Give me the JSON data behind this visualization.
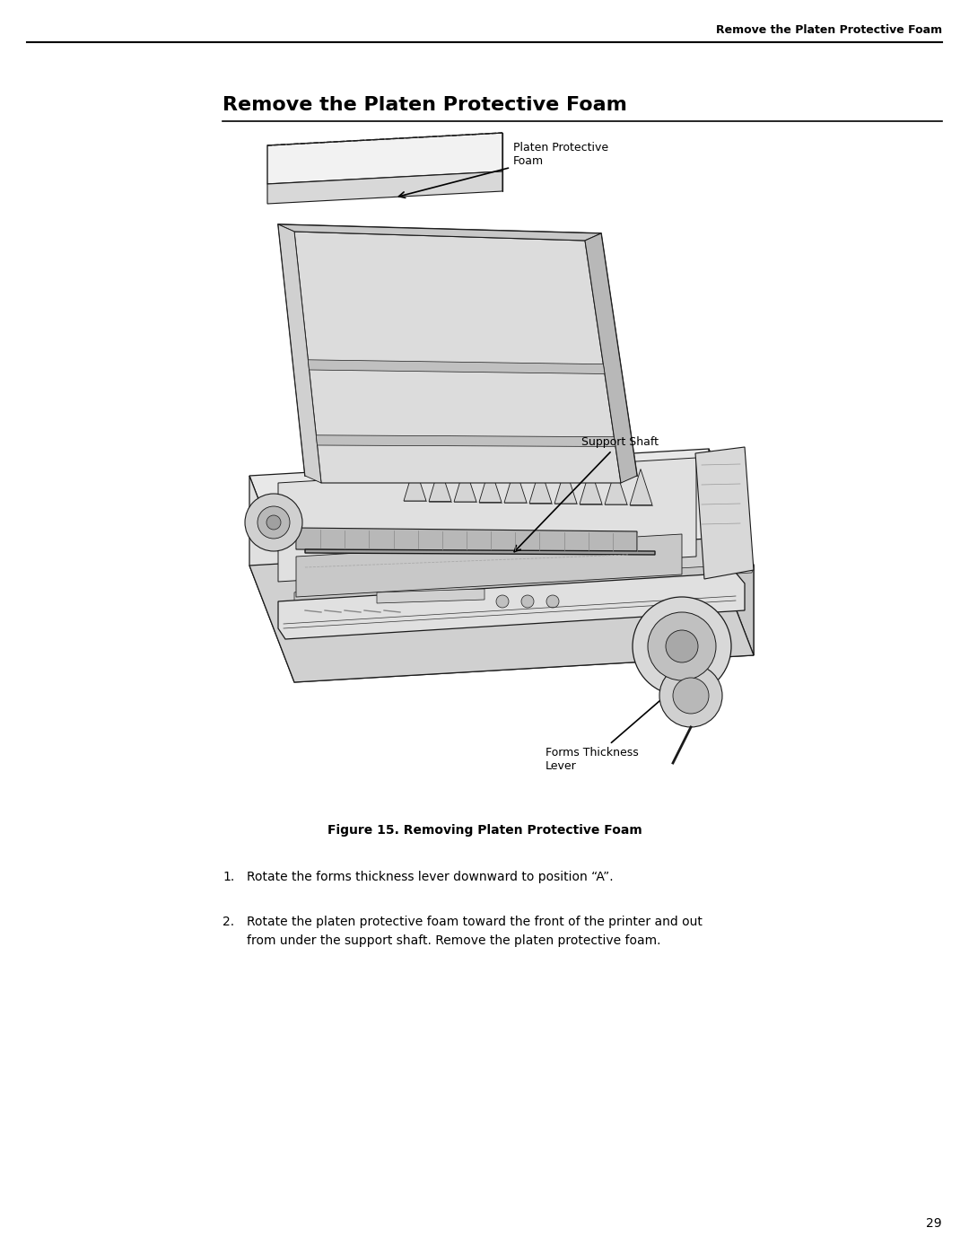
{
  "page_width": 10.8,
  "page_height": 13.97,
  "dpi": 100,
  "background_color": "#ffffff",
  "header_text": "Remove the Platen Protective Foam",
  "header_font_size": 9,
  "section_title": "Remove the Platen Protective Foam",
  "section_title_font_size": 16,
  "figure_caption": "Figure 15. Removing Platen Protective Foam",
  "figure_caption_font_size": 10,
  "step1_num": "1.",
  "step1_text": "Rotate the forms thickness lever downward to position “A”.",
  "step2_num": "2.",
  "step2_text": "Rotate the platen protective foam toward the front of the printer and out\nfrom under the support shaft. Remove the platen protective foam.",
  "step_font_size": 10,
  "page_number": "29",
  "page_number_font_size": 10,
  "ann_platen_text": "Platen Protective\nFoam",
  "ann_support_text": "Support Shaft",
  "ann_forms_text": "Forms Thickness\nLever",
  "ann_font_size": 9
}
